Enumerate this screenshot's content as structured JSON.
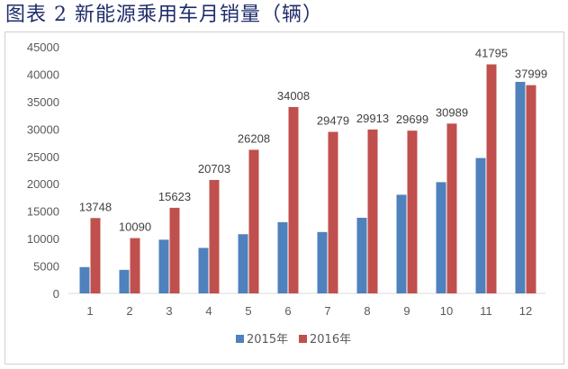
{
  "page": {
    "title": "图表 2 新能源乘用车月销量（辆）"
  },
  "chart_data": {
    "type": "bar",
    "categories": [
      "1",
      "2",
      "3",
      "4",
      "5",
      "6",
      "7",
      "8",
      "9",
      "10",
      "11",
      "12"
    ],
    "series": [
      {
        "name": "2015年",
        "color": "#4f81bd",
        "values": [
          4800,
          4300,
          9800,
          8300,
          10800,
          13000,
          11200,
          13800,
          18000,
          20300,
          24700,
          38600
        ]
      },
      {
        "name": "2016年",
        "color": "#c0504d",
        "values": [
          13748,
          10090,
          15623,
          20703,
          26208,
          34008,
          29479,
          29913,
          29699,
          30989,
          41795,
          37999
        ],
        "data_labels": [
          "13748",
          "10090",
          "15623",
          "20703",
          "26208",
          "34008",
          "29479",
          "29913",
          "29699",
          "30989",
          "41795",
          "37999"
        ]
      }
    ],
    "y_ticks": [
      "0",
      "5000",
      "10000",
      "15000",
      "20000",
      "25000",
      "30000",
      "35000",
      "40000",
      "45000"
    ],
    "ylim": [
      0,
      45000
    ],
    "grid": false,
    "legend": "bottom",
    "title": "",
    "xlabel": "",
    "ylabel": ""
  }
}
